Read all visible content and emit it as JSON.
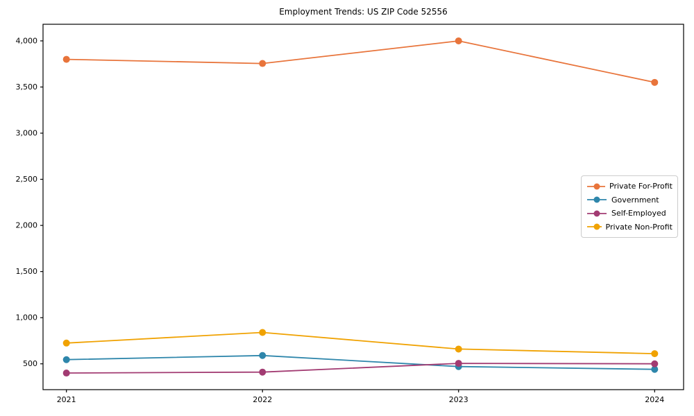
{
  "figure": {
    "background_color": "#ffffff",
    "axes_color": "#000000"
  },
  "chart_data": {
    "type": "line",
    "title": "Employment Trends: US ZIP Code 52556",
    "categories": [
      "2021",
      "2022",
      "2023",
      "2024"
    ],
    "series": [
      {
        "name": "Private For-Profit",
        "color": "#E8743B",
        "values": [
          3800,
          3755,
          4000,
          3550
        ]
      },
      {
        "name": "Government",
        "color": "#2E86AB",
        "values": [
          545,
          590,
          470,
          440
        ]
      },
      {
        "name": "Self-Employed",
        "color": "#A23B72",
        "values": [
          400,
          410,
          505,
          500
        ]
      },
      {
        "name": "Private Non-Profit",
        "color": "#F0A202",
        "values": [
          725,
          840,
          660,
          610
        ]
      }
    ],
    "yticks": [
      500,
      1000,
      1500,
      2000,
      2500,
      3000,
      3500,
      4000
    ],
    "ytick_labels": [
      "500",
      "1,000",
      "1,500",
      "2,000",
      "2,500",
      "3,000",
      "3,500",
      "4,000"
    ],
    "ylim": [
      220,
      4180
    ],
    "xlabel": "",
    "ylabel": "",
    "grid": false,
    "marker": "circle",
    "legend_position": "center right"
  }
}
